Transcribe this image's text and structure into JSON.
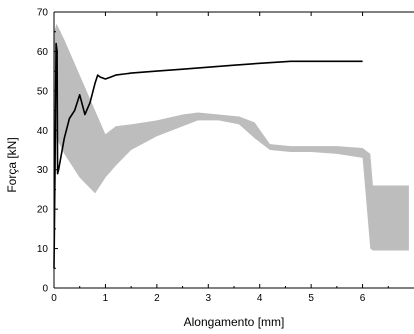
{
  "chart_data": {
    "type": "line",
    "xlabel": "Alongamento [mm]",
    "ylabel": "Força [kN]",
    "xlim": [
      0,
      7
    ],
    "ylim": [
      0,
      70
    ],
    "xticks": [
      0,
      1,
      2,
      3,
      4,
      5,
      6
    ],
    "yticks": [
      0,
      10,
      20,
      30,
      40,
      50,
      60,
      70
    ],
    "grid": false,
    "colors": {
      "line": "#000000",
      "band": "#bdbdbd"
    },
    "band": {
      "description": "grey oscillating trace",
      "x": [
        0.0,
        0.05,
        0.2,
        0.5,
        0.8,
        1.0,
        1.2,
        1.5,
        2.0,
        2.5,
        2.8,
        3.2,
        3.6,
        3.9,
        4.2,
        4.6,
        5.0,
        5.5,
        6.0,
        6.15,
        6.2,
        6.4,
        6.9
      ],
      "upper": [
        65,
        67,
        63,
        54,
        45,
        39,
        41,
        41.5,
        42.5,
        44,
        44.5,
        44,
        43.5,
        42,
        36.5,
        36,
        36,
        36,
        35.5,
        34,
        26,
        26,
        26
      ],
      "lower": [
        10,
        38,
        34,
        28,
        24,
        28,
        31,
        35,
        38.5,
        41,
        42.5,
        42.5,
        41.5,
        38,
        35,
        34.5,
        34.5,
        34,
        33,
        10,
        9.5,
        9.5,
        9.5
      ]
    },
    "series": [
      {
        "x": [
          0.0,
          0.02,
          0.04,
          0.06,
          0.07,
          0.09,
          0.2,
          0.3,
          0.4,
          0.5,
          0.6,
          0.7,
          0.8,
          0.85,
          0.9,
          1.0,
          1.1,
          1.2,
          1.5,
          2.0,
          2.5,
          3.0,
          3.5,
          4.0,
          4.6,
          5.0,
          5.5,
          6.0
        ],
        "y": [
          5,
          30,
          62,
          60,
          29,
          30,
          38,
          43,
          45,
          49,
          44,
          47,
          52,
          54,
          53.5,
          53,
          53.5,
          54,
          54.5,
          55,
          55.5,
          56,
          56.5,
          57,
          57.5,
          57.5,
          57.5,
          57.5
        ]
      }
    ]
  }
}
